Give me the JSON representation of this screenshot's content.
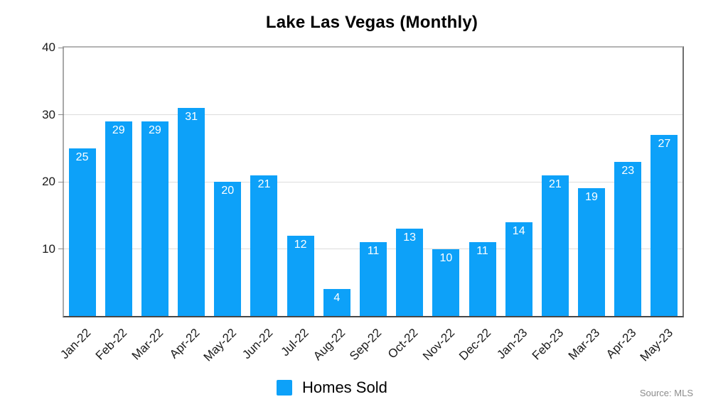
{
  "chart_data": {
    "type": "bar",
    "title": "Lake Las Vegas (Monthly)",
    "categories": [
      "Jan-22",
      "Feb-22",
      "Mar-22",
      "Apr-22",
      "May-22",
      "Jun-22",
      "Jul-22",
      "Aug-22",
      "Sep-22",
      "Oct-22",
      "Nov-22",
      "Dec-22",
      "Jan-23",
      "Feb-23",
      "Mar-23",
      "Apr-23",
      "May-23"
    ],
    "values": [
      25,
      29,
      29,
      31,
      20,
      21,
      12,
      4,
      11,
      13,
      10,
      11,
      14,
      21,
      19,
      23,
      27
    ],
    "series_name": "Homes Sold",
    "xlabel": "",
    "ylabel": "",
    "ylim": [
      0,
      40
    ],
    "yticks": [
      10,
      20,
      30,
      40
    ],
    "gridlines": [
      10,
      20,
      30
    ],
    "grid": "horizontal",
    "legend_position": "bottom-center",
    "bar_color": "#0da1f9",
    "value_label_color": "#ffffff",
    "source_note": "Source: MLS"
  },
  "legend": {
    "label": "Homes Sold",
    "swatch_color": "#0da1f9"
  },
  "footer": {
    "source": "Source: MLS"
  }
}
